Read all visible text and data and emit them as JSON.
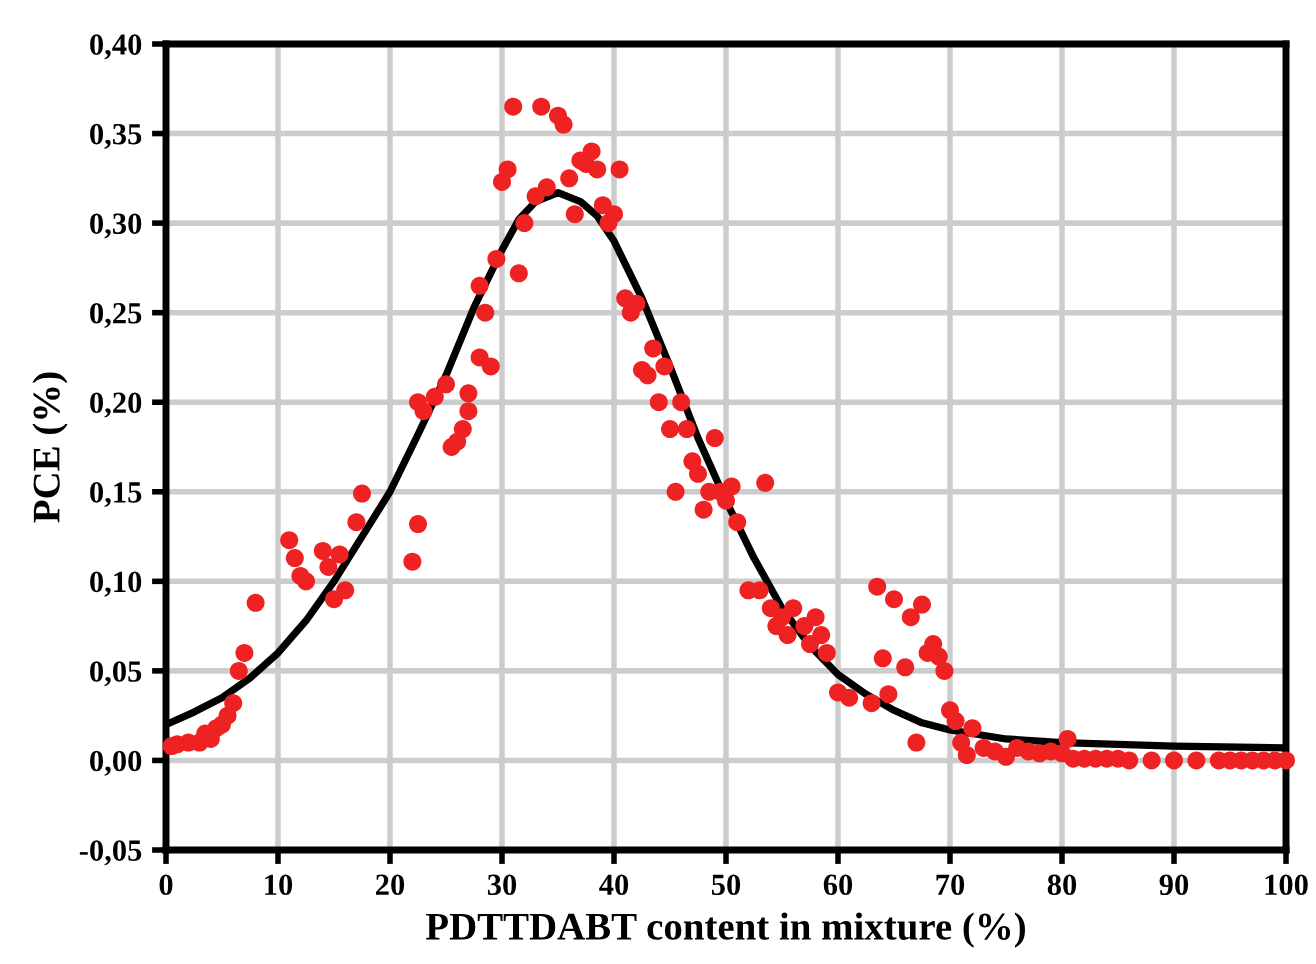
{
  "chart_data": {
    "type": "scatter",
    "xlabel": "PDTTDABT content in mixture (%)",
    "ylabel": "PCE (%)",
    "xlim": [
      0,
      100
    ],
    "xticks": [
      0,
      10,
      20,
      30,
      40,
      50,
      60,
      70,
      80,
      90,
      100
    ],
    "ylim": [
      -0.05,
      0.4
    ],
    "yticks": [
      {
        "value": -0.05,
        "label": "-0,05"
      },
      {
        "value": 0,
        "label": "0,00"
      },
      {
        "value": 0.05,
        "label": "0,05"
      },
      {
        "value": 0.1,
        "label": "0,10"
      },
      {
        "value": 0.15,
        "label": "0,15"
      },
      {
        "value": 0.2,
        "label": "0,20"
      },
      {
        "value": 0.25,
        "label": "0,25"
      },
      {
        "value": 0.3,
        "label": "0,30"
      },
      {
        "value": 0.35,
        "label": "0,35"
      },
      {
        "value": 0.4,
        "label": "0,40"
      }
    ],
    "grid": true,
    "legend": false,
    "series": [
      {
        "color": "#ee2222",
        "marker": "circle",
        "x": [
          0.5,
          1,
          2,
          3,
          3.5,
          4,
          4.5,
          5,
          5.5,
          6,
          6.5,
          7,
          8,
          11,
          11.5,
          12,
          12.5,
          14,
          14.5,
          15,
          15.5,
          16,
          17,
          17.5,
          22,
          22.5,
          22.5,
          23,
          24,
          25,
          25.5,
          26,
          26.5,
          27,
          27,
          28,
          28,
          28.5,
          29,
          29.5,
          30,
          30.5,
          31,
          31.5,
          32,
          33,
          33.5,
          34,
          35,
          35.5,
          36,
          36.5,
          37,
          37.5,
          38,
          38.5,
          39,
          39.5,
          40,
          40.5,
          41,
          41.5,
          42,
          42.5,
          43,
          43.5,
          44,
          44.5,
          45,
          45.5,
          46,
          46.5,
          47,
          47.5,
          48,
          48.5,
          49,
          49.5,
          50,
          50.5,
          51,
          52,
          53,
          53.5,
          54,
          54.5,
          55,
          55.5,
          56,
          57,
          57.5,
          58,
          58.5,
          59,
          60,
          61,
          63,
          63.5,
          64,
          64.5,
          65,
          66,
          66.5,
          67,
          67.5,
          68,
          68.5,
          69,
          69.5,
          70,
          70.5,
          71,
          71.5,
          72,
          73,
          74,
          75,
          76,
          77,
          78,
          79,
          80,
          80.5,
          81,
          82,
          83,
          84,
          85,
          86,
          88,
          90,
          92,
          94,
          95,
          96,
          97,
          98,
          99,
          100
        ],
        "values": [
          0.008,
          0.009,
          0.01,
          0.01,
          0.015,
          0.012,
          0.018,
          0.02,
          0.025,
          0.032,
          0.05,
          0.06,
          0.088,
          0.123,
          0.113,
          0.103,
          0.1,
          0.117,
          0.108,
          0.09,
          0.115,
          0.095,
          0.133,
          0.149,
          0.111,
          0.132,
          0.2,
          0.195,
          0.203,
          0.21,
          0.175,
          0.178,
          0.185,
          0.195,
          0.205,
          0.225,
          0.265,
          0.25,
          0.22,
          0.28,
          0.323,
          0.33,
          0.365,
          0.272,
          0.3,
          0.315,
          0.365,
          0.32,
          0.36,
          0.355,
          0.325,
          0.305,
          0.335,
          0.333,
          0.34,
          0.33,
          0.31,
          0.3,
          0.305,
          0.33,
          0.258,
          0.25,
          0.255,
          0.218,
          0.215,
          0.23,
          0.2,
          0.22,
          0.185,
          0.15,
          0.2,
          0.185,
          0.167,
          0.16,
          0.14,
          0.15,
          0.18,
          0.15,
          0.145,
          0.153,
          0.133,
          0.095,
          0.095,
          0.155,
          0.085,
          0.075,
          0.08,
          0.07,
          0.085,
          0.075,
          0.065,
          0.08,
          0.07,
          0.06,
          0.038,
          0.035,
          0.032,
          0.097,
          0.057,
          0.037,
          0.09,
          0.052,
          0.08,
          0.01,
          0.087,
          0.06,
          0.065,
          0.058,
          0.05,
          0.028,
          0.022,
          0.01,
          0.003,
          0.018,
          0.007,
          0.005,
          0.002,
          0.007,
          0.005,
          0.004,
          0.005,
          0.004,
          0.012,
          0.001,
          0.001,
          0.001,
          0.001,
          0.001,
          0,
          0,
          0,
          0,
          0,
          0,
          0,
          0,
          0,
          0,
          0
        ]
      },
      {
        "type": "line",
        "color": "#000000",
        "marker": "none",
        "line_style": "solid",
        "x": [
          0,
          2.5,
          5,
          7.5,
          10,
          12.5,
          15,
          17.5,
          20,
          22.5,
          25,
          27.5,
          30,
          31.5,
          33,
          35,
          37,
          38.5,
          40,
          42.5,
          45,
          47.5,
          50,
          52.5,
          55,
          57.5,
          60,
          62.5,
          65,
          67.5,
          70,
          75,
          80,
          90,
          100
        ],
        "values": [
          0.02,
          0.027,
          0.035,
          0.046,
          0.06,
          0.078,
          0.1,
          0.125,
          0.15,
          0.182,
          0.215,
          0.253,
          0.285,
          0.302,
          0.312,
          0.317,
          0.312,
          0.304,
          0.29,
          0.258,
          0.22,
          0.18,
          0.145,
          0.113,
          0.085,
          0.064,
          0.048,
          0.037,
          0.028,
          0.021,
          0.017,
          0.012,
          0.01,
          0.008,
          0.007
        ]
      }
    ]
  }
}
